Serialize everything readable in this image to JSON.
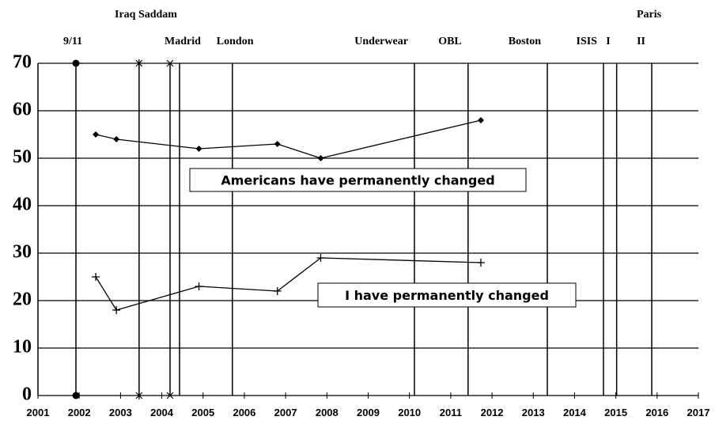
{
  "chart_data": {
    "type": "line",
    "xlim": [
      2001,
      2017
    ],
    "xticks": [
      2001,
      2002,
      2003,
      2004,
      2005,
      2006,
      2007,
      2008,
      2009,
      2010,
      2011,
      2012,
      2013,
      2014,
      2015,
      2016,
      2017
    ],
    "ylim": [
      0,
      70
    ],
    "yticks": [
      0,
      10,
      20,
      30,
      40,
      50,
      60,
      70
    ],
    "grid": true,
    "series": [
      {
        "name": "Americans have permanently changed",
        "color": "#000000",
        "marker": "diamond",
        "x": [
          2002.4,
          2002.9,
          2004.9,
          2006.8,
          2007.85,
          2011.73
        ],
        "values": [
          55,
          54,
          52,
          53,
          50,
          58
        ]
      },
      {
        "name": "I have permanently changed",
        "color": "#000000",
        "marker": "plus",
        "x": [
          2002.4,
          2002.9,
          2004.9,
          2006.8,
          2007.85,
          2011.73
        ],
        "values": [
          25,
          18,
          23,
          22,
          29,
          28
        ]
      }
    ],
    "events": [
      {
        "label": "9/11",
        "x": 2001.92
      },
      {
        "x": 2003.45
      },
      {
        "x": 2004.2
      },
      {
        "label": "Madrid",
        "x": 2004.43
      },
      {
        "label": "London",
        "x": 2005.71
      },
      {
        "label": "Underwear",
        "x": 2010.12
      },
      {
        "label": "OBL",
        "x": 2011.42
      },
      {
        "label": "Boston",
        "x": 2013.34
      },
      {
        "label": "ISIS",
        "x": 2014.7
      },
      {
        "label": "I",
        "x": 2015.02
      },
      {
        "label": "II",
        "x": 2015.87
      }
    ],
    "annotations": [
      "Iraq Saddam",
      "Paris"
    ]
  }
}
